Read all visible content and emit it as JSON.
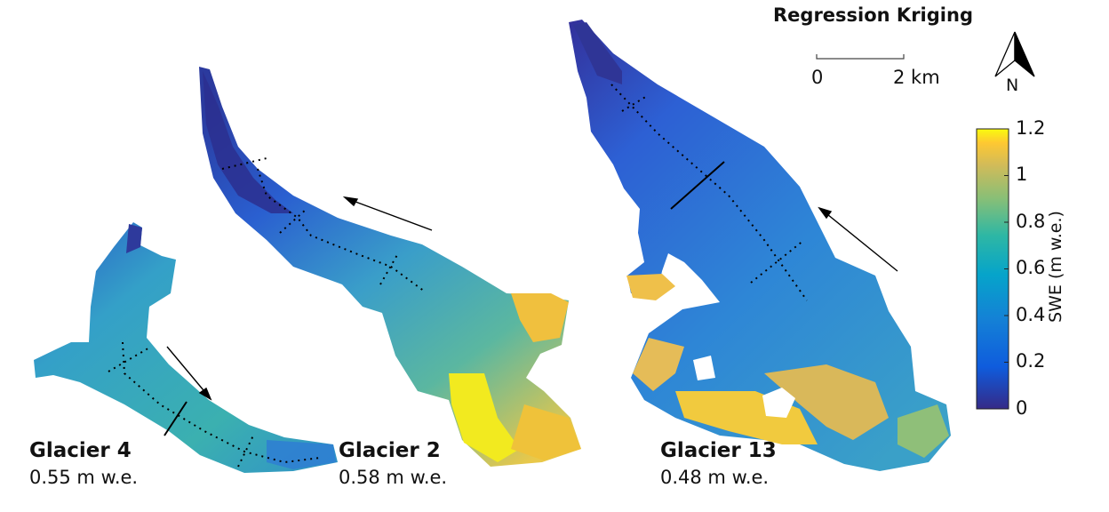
{
  "title": "Regression Kriging",
  "scale_bar": {
    "start_label": "0",
    "end_label": "2 km"
  },
  "north_arrow": {
    "label": "N"
  },
  "colorbar": {
    "label": "SWE (m w.e.)",
    "ticks": [
      "1.2",
      "1",
      "0.8",
      "0.6",
      "0.4",
      "0.2",
      "0"
    ],
    "colormap": "parula"
  },
  "glaciers": [
    {
      "name": "Glacier 4",
      "value_label": "0.55 m w.e."
    },
    {
      "name": "Glacier 2",
      "value_label": "0.58 m w.e."
    },
    {
      "name": "Glacier 13",
      "value_label": "0.48 m w.e."
    }
  ],
  "colors": {
    "low": "#352a87",
    "blue": "#1f7de0",
    "mid": "#3fa7c8",
    "teal": "#1fb0a6",
    "green": "#a5bd6b",
    "orange": "#f0b93f",
    "yellow": "#f7f215"
  }
}
